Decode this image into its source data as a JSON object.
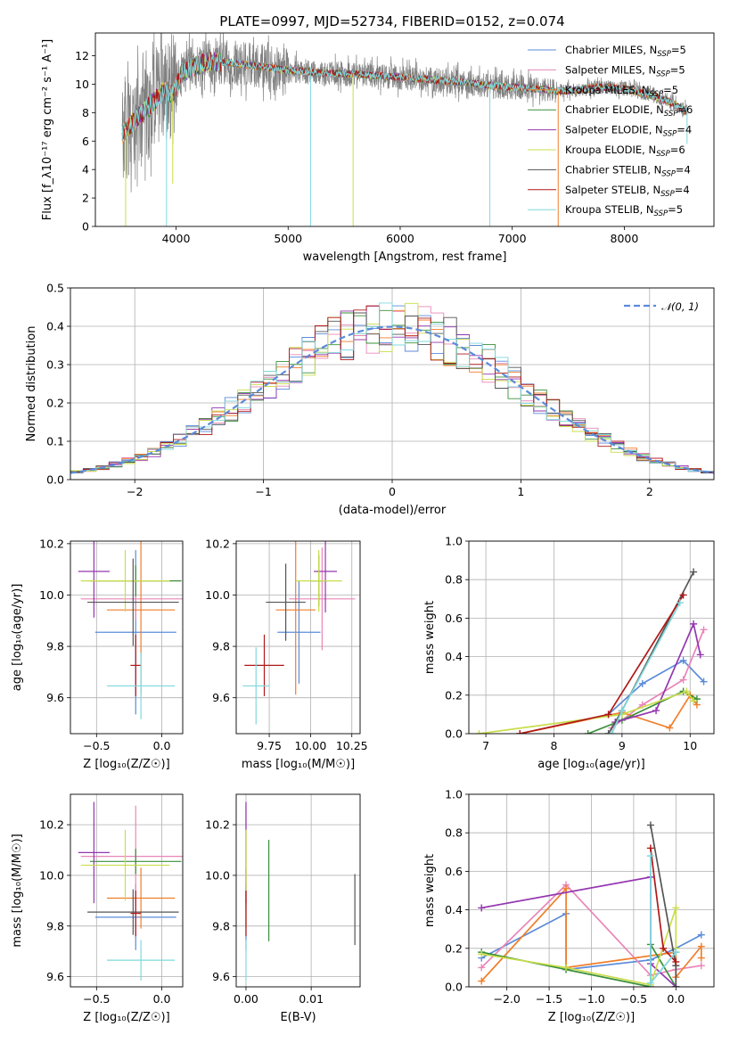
{
  "figure": {
    "title": "PLATE=0997, MJD=52734, FIBERID=0152, z=0.074",
    "colors": {
      "Chabrier MILES": "#5b8bd9",
      "Salpeter MILES": "#e986b8",
      "Kroupa MILES": "#f07e2a",
      "Chabrier ELODIE": "#3a8f3a",
      "Salpeter ELODIE": "#9436b0",
      "Kroupa ELODIE": "#c9dd4a",
      "Chabrier STELIB": "#555555",
      "Salpeter STELIB": "#b01818",
      "Kroupa STELIB": "#7fd8dc",
      "data": "#808080"
    }
  },
  "chart_data": [
    {
      "id": "spectrum",
      "type": "line",
      "xlabel": "wavelength [Angstrom, rest frame]",
      "ylabel": "Flux [f_λ10⁻¹⁷ erg cm⁻² s⁻¹ A⁻¹]",
      "xlim": [
        3280,
        8800
      ],
      "ylim": [
        0,
        13.6
      ],
      "xticks": [
        4000,
        5000,
        6000,
        7000,
        8000
      ],
      "yticks": [
        0,
        2,
        4,
        6,
        8,
        10,
        12
      ],
      "legend_position": "top-right",
      "legend": [
        {
          "label": "Chabrier MILES, N",
          "sub": "SSP",
          "tail": "=5",
          "color": "#5b8bd9"
        },
        {
          "label": "Salpeter MILES, N",
          "sub": "SSP",
          "tail": "=5",
          "color": "#e986b8"
        },
        {
          "label": "Kroupa MILES, N",
          "sub": "SSP",
          "tail": "=5",
          "color": "#f07e2a"
        },
        {
          "label": "Chabrier ELODIE, N",
          "sub": "SSP",
          "tail": "=6",
          "color": "#3a8f3a"
        },
        {
          "label": "Salpeter ELODIE, N",
          "sub": "SSP",
          "tail": "=4",
          "color": "#9436b0"
        },
        {
          "label": "Kroupa ELODIE, N",
          "sub": "SSP",
          "tail": "=6",
          "color": "#c9dd4a"
        },
        {
          "label": "Chabrier STELIB, N",
          "sub": "SSP",
          "tail": "=4",
          "color": "#555555"
        },
        {
          "label": "Salpeter STELIB, N",
          "sub": "SSP",
          "tail": "=4",
          "color": "#b01818"
        },
        {
          "label": "Kroupa STELIB, N",
          "sub": "SSP",
          "tail": "=5",
          "color": "#7fd8dc"
        }
      ],
      "continuum": {
        "x": [
          3520,
          3600,
          3700,
          3800,
          3900,
          3970,
          4050,
          4150,
          4300,
          4500,
          4700,
          5000,
          5300,
          5600,
          6000,
          6300,
          6600,
          6800,
          7000,
          7200,
          7400,
          7600,
          7800,
          8000,
          8200,
          8400,
          8550
        ],
        "y": [
          6.5,
          7.2,
          8.0,
          8.8,
          9.6,
          9.2,
          10.8,
          11.2,
          11.6,
          11.5,
          11.3,
          11.0,
          10.8,
          10.7,
          10.5,
          10.3,
          10.1,
          9.9,
          9.8,
          9.7,
          9.5,
          9.6,
          9.8,
          9.7,
          9.3,
          8.8,
          8.1
        ]
      },
      "dips": [
        {
          "x": 3550,
          "y": 0
        },
        {
          "x": 3915,
          "y": 0
        },
        {
          "x": 3970,
          "y": 3.0
        },
        {
          "x": 5200,
          "y": 0
        },
        {
          "x": 5580,
          "y": 0
        },
        {
          "x": 6800,
          "y": 0
        },
        {
          "x": 7410,
          "y": 0
        },
        {
          "x": 8560,
          "y": 5.8
        }
      ]
    },
    {
      "id": "residuals",
      "type": "area",
      "xlabel": "(data-model)/error",
      "ylabel": "Normed distribution",
      "xlim": [
        -2.5,
        2.5
      ],
      "ylim": [
        0,
        0.5
      ],
      "xticks": [
        -2,
        -1,
        0,
        1,
        2
      ],
      "yticks": [
        0.0,
        0.1,
        0.2,
        0.3,
        0.4,
        0.5
      ],
      "legend_position": "top-right",
      "legend": [
        {
          "label": "𝒩(0, 1)",
          "color": "#5b8bd9"
        }
      ],
      "bin_width": 0.1,
      "bin_start": -2.5,
      "grid": true
    },
    {
      "id": "age-vs-z",
      "type": "scatter",
      "xlabel": "Z [log₁₀(Z/Z☉)]",
      "ylabel": "age  [log₁₀(age/yr)]",
      "xlim": [
        -0.7,
        0.16
      ],
      "ylim": [
        9.46,
        10.21
      ],
      "xticks": [
        -0.5,
        0.0
      ],
      "yticks": [
        9.6,
        9.8,
        10.0,
        10.2
      ],
      "points": [
        {
          "model": "Chabrier MILES",
          "x": -0.2,
          "xerr": 0.31,
          "y": 9.855,
          "yerr": 0.32
        },
        {
          "model": "Salpeter MILES",
          "x": -0.2,
          "xerr": 0.42,
          "y": 9.985,
          "yerr": 0.08
        },
        {
          "model": "Kroupa MILES",
          "x": -0.16,
          "xerr": 0.26,
          "y": 9.942,
          "yerr": 0.33
        },
        {
          "model": "Chabrier ELODIE",
          "x": -0.2,
          "xerr": 0.35,
          "y": 10.055,
          "yerr": 0.06
        },
        {
          "model": "Salpeter ELODIE",
          "x": -0.52,
          "xerr": 0.12,
          "y": 10.092,
          "yerr": 0.18
        },
        {
          "model": "Kroupa ELODIE",
          "x": -0.28,
          "xerr": 0.34,
          "y": 10.055,
          "yerr": 0.12
        },
        {
          "model": "Chabrier STELIB",
          "x": -0.22,
          "xerr": 0.35,
          "y": 9.972,
          "yerr": 0.17
        },
        {
          "model": "Salpeter STELIB",
          "x": -0.2,
          "xerr": 0.04,
          "y": 9.726,
          "yerr": 0.12
        },
        {
          "model": "Kroupa STELIB",
          "x": -0.16,
          "xerr": 0.26,
          "y": 9.646,
          "yerr": 0.13
        }
      ]
    },
    {
      "id": "age-vs-mass",
      "type": "scatter",
      "xlabel": "mass [log₁₀(M/M☉)]",
      "ylabel": "",
      "xlim": [
        9.55,
        10.3
      ],
      "ylim": [
        9.46,
        10.21
      ],
      "xticks": [
        9.75,
        10.0,
        10.25
      ],
      "yticks": [
        9.6,
        9.8,
        10.0,
        10.2
      ],
      "points": [
        {
          "model": "Chabrier MILES",
          "x": 9.93,
          "xerr": 0.13,
          "y": 9.855,
          "yerr": 0.2
        },
        {
          "model": "Salpeter MILES",
          "x": 10.07,
          "xerr": 0.2,
          "y": 9.985,
          "yerr": 0.2
        },
        {
          "model": "Kroupa MILES",
          "x": 9.91,
          "xerr": 0.12,
          "y": 9.942,
          "yerr": 0.33
        },
        {
          "model": "Chabrier ELODIE",
          "x": 10.05,
          "xerr": 0.05,
          "y": 10.055,
          "yerr": 0.1
        },
        {
          "model": "Salpeter ELODIE",
          "x": 10.09,
          "xerr": 0.07,
          "y": 10.092,
          "yerr": 0.16
        },
        {
          "model": "Kroupa ELODIE",
          "x": 10.05,
          "xerr": 0.14,
          "y": 10.055,
          "yerr": 0.12
        },
        {
          "model": "Chabrier STELIB",
          "x": 9.85,
          "xerr": 0.12,
          "y": 9.972,
          "yerr": 0.15
        },
        {
          "model": "Salpeter STELIB",
          "x": 9.72,
          "xerr": 0.12,
          "y": 9.726,
          "yerr": 0.12
        },
        {
          "model": "Kroupa STELIB",
          "x": 9.67,
          "xerr": 0.08,
          "y": 9.646,
          "yerr": 0.15
        }
      ]
    },
    {
      "id": "weight-vs-age",
      "type": "line",
      "xlabel": "age  [log₁₀(age/yr)]",
      "ylabel": "mass weight",
      "xlim": [
        6.75,
        10.35
      ],
      "ylim": [
        0,
        1
      ],
      "xticks": [
        7,
        8,
        9,
        10
      ],
      "yticks": [
        0.0,
        0.2,
        0.4,
        0.6,
        0.8,
        1.0
      ],
      "series": [
        {
          "model": "Chabrier MILES",
          "x": [
            8.8,
            9.3,
            9.9,
            10.2
          ],
          "y": [
            0.1,
            0.26,
            0.38,
            0.27
          ]
        },
        {
          "model": "Salpeter MILES",
          "x": [
            8.85,
            9.3,
            9.9,
            10.2
          ],
          "y": [
            0.03,
            0.15,
            0.28,
            0.54
          ]
        },
        {
          "model": "Kroupa MILES",
          "x": [
            7.5,
            9.0,
            9.7,
            10.0,
            10.1
          ],
          "y": [
            0.0,
            0.11,
            0.03,
            0.2,
            0.15
          ]
        },
        {
          "model": "Chabrier ELODIE",
          "x": [
            8.5,
            9.0,
            9.9,
            10.1
          ],
          "y": [
            0.0,
            0.07,
            0.22,
            0.18
          ]
        },
        {
          "model": "Salpeter ELODIE",
          "x": [
            8.9,
            9.5,
            10.05,
            10.15
          ],
          "y": [
            0.06,
            0.12,
            0.57,
            0.41
          ]
        },
        {
          "model": "Kroupa ELODIE",
          "x": [
            6.9,
            9.0,
            9.95,
            10.05
          ],
          "y": [
            0.0,
            0.1,
            0.22,
            0.17
          ]
        },
        {
          "model": "Chabrier STELIB",
          "x": [
            8.8,
            9.0,
            10.05
          ],
          "y": [
            0.0,
            0.12,
            0.84
          ]
        },
        {
          "model": "Salpeter STELIB",
          "x": [
            7.5,
            8.8,
            9.9
          ],
          "y": [
            0.0,
            0.1,
            0.72
          ]
        },
        {
          "model": "Kroupa STELIB",
          "x": [
            8.85,
            9.0,
            9.85
          ],
          "y": [
            0.0,
            0.12,
            0.68
          ]
        }
      ]
    },
    {
      "id": "mass-vs-z",
      "type": "scatter",
      "xlabel": "Z [log₁₀(Z/Z☉)]",
      "ylabel": "mass [log₁₀(M/M☉)]",
      "xlim": [
        -0.7,
        0.16
      ],
      "ylim": [
        9.56,
        10.32
      ],
      "xticks": [
        -0.5,
        0.0
      ],
      "yticks": [
        9.6,
        9.8,
        10.0,
        10.2
      ],
      "points": [
        {
          "model": "Chabrier MILES",
          "x": -0.2,
          "xerr": 0.31,
          "y": 9.835,
          "yerr": 0.13
        },
        {
          "model": "Salpeter MILES",
          "x": -0.2,
          "xerr": 0.42,
          "y": 10.075,
          "yerr": 0.2
        },
        {
          "model": "Kroupa MILES",
          "x": -0.16,
          "xerr": 0.26,
          "y": 9.91,
          "yerr": 0.12
        },
        {
          "model": "Chabrier ELODIE",
          "x": -0.2,
          "xerr": 0.35,
          "y": 10.055,
          "yerr": 0.05
        },
        {
          "model": "Salpeter ELODIE",
          "x": -0.52,
          "xerr": 0.12,
          "y": 10.09,
          "yerr": 0.2
        },
        {
          "model": "Kroupa ELODIE",
          "x": -0.28,
          "xerr": 0.34,
          "y": 10.04,
          "yerr": 0.14
        },
        {
          "model": "Chabrier STELIB",
          "x": -0.22,
          "xerr": 0.35,
          "y": 9.855,
          "yerr": 0.09
        },
        {
          "model": "Salpeter STELIB",
          "x": -0.2,
          "xerr": 0.04,
          "y": 9.85,
          "yerr": 0.09
        },
        {
          "model": "Kroupa STELIB",
          "x": -0.16,
          "xerr": 0.26,
          "y": 9.665,
          "yerr": 0.08
        }
      ]
    },
    {
      "id": "mass-vs-ebv",
      "type": "scatter",
      "xlabel": "E(B-V)",
      "ylabel": "",
      "xlim": [
        -0.0015,
        0.0175
      ],
      "ylim": [
        9.56,
        10.32
      ],
      "xticks": [
        0.0,
        0.01
      ],
      "yticks": [
        9.6,
        9.8,
        10.0,
        10.2
      ],
      "points": [
        {
          "model": "Chabrier MILES",
          "x": 0.0,
          "xerr": 0.0,
          "y": 9.835,
          "yerr": 0.13
        },
        {
          "model": "Salpeter MILES",
          "x": 0.0,
          "xerr": 0.0,
          "y": 10.075,
          "yerr": 0.2
        },
        {
          "model": "Kroupa MILES",
          "x": 0.0,
          "xerr": 0.0,
          "y": 9.91,
          "yerr": 0.12
        },
        {
          "model": "Chabrier ELODIE",
          "x": 0.0035,
          "xerr": 0.0,
          "y": 9.94,
          "yerr": 0.2
        },
        {
          "model": "Salpeter ELODIE",
          "x": 0.0,
          "xerr": 0.0,
          "y": 10.09,
          "yerr": 0.2
        },
        {
          "model": "Kroupa ELODIE",
          "x": 0.0,
          "xerr": 0.0,
          "y": 10.04,
          "yerr": 0.14
        },
        {
          "model": "Chabrier STELIB",
          "x": 0.0167,
          "xerr": 0.0,
          "y": 9.865,
          "yerr": 0.14
        },
        {
          "model": "Salpeter STELIB",
          "x": 0.0,
          "xerr": 0.0,
          "y": 9.85,
          "yerr": 0.09
        },
        {
          "model": "Kroupa STELIB",
          "x": 0.0,
          "xerr": 0.0,
          "y": 9.665,
          "yerr": 0.08
        }
      ]
    },
    {
      "id": "weight-vs-z",
      "type": "line",
      "xlabel": "Z [log₁₀(Z/Z☉)]",
      "ylabel": "mass weight",
      "xlim": [
        -2.45,
        0.45
      ],
      "ylim": [
        0,
        1
      ],
      "xticks": [
        -2.0,
        -1.5,
        -1.0,
        -0.5,
        0.0
      ],
      "yticks": [
        0.0,
        0.2,
        0.4,
        0.6,
        0.8,
        1.0
      ],
      "series": [
        {
          "model": "Chabrier MILES",
          "x": [
            -2.3,
            -1.3,
            -1.3,
            -0.3,
            0.0,
            0.3
          ],
          "y": [
            0.15,
            0.38,
            0.09,
            0.14,
            0.2,
            0.27
          ]
        },
        {
          "model": "Salpeter MILES",
          "x": [
            -2.3,
            -1.3,
            -0.3,
            0.0,
            0.3
          ],
          "y": [
            0.1,
            0.53,
            0.06,
            0.09,
            0.11
          ]
        },
        {
          "model": "Kroupa MILES",
          "x": [
            -2.3,
            -1.3,
            -1.3,
            0.0,
            0.0,
            0.3,
            0.3
          ],
          "y": [
            0.03,
            0.51,
            0.1,
            0.18,
            0.05,
            0.21,
            0.15
          ]
        },
        {
          "model": "Chabrier ELODIE",
          "x": [
            -2.3,
            -1.3,
            -0.3,
            -0.3,
            0.0
          ],
          "y": [
            0.18,
            0.09,
            0.0,
            0.22,
            0.0
          ]
        },
        {
          "model": "Salpeter ELODIE",
          "x": [
            -2.3,
            -0.3,
            -0.3,
            0.0
          ],
          "y": [
            0.41,
            0.57,
            0.12,
            0.0
          ]
        },
        {
          "model": "Kroupa ELODIE",
          "x": [
            -2.3,
            -1.3,
            -0.3,
            0.0,
            0.0
          ],
          "y": [
            0.17,
            0.1,
            0.01,
            0.41,
            0.2
          ]
        },
        {
          "model": "Chabrier STELIB",
          "x": [
            -0.3,
            0.0,
            0.0
          ],
          "y": [
            0.84,
            0.11,
            0.0
          ]
        },
        {
          "model": "Salpeter STELIB",
          "x": [
            -0.3,
            -0.15,
            0.0
          ],
          "y": [
            0.72,
            0.2,
            0.13
          ]
        },
        {
          "model": "Kroupa STELIB",
          "x": [
            -0.3,
            -0.3,
            0.0
          ],
          "y": [
            0.68,
            0.02,
            0.18
          ]
        }
      ]
    }
  ]
}
